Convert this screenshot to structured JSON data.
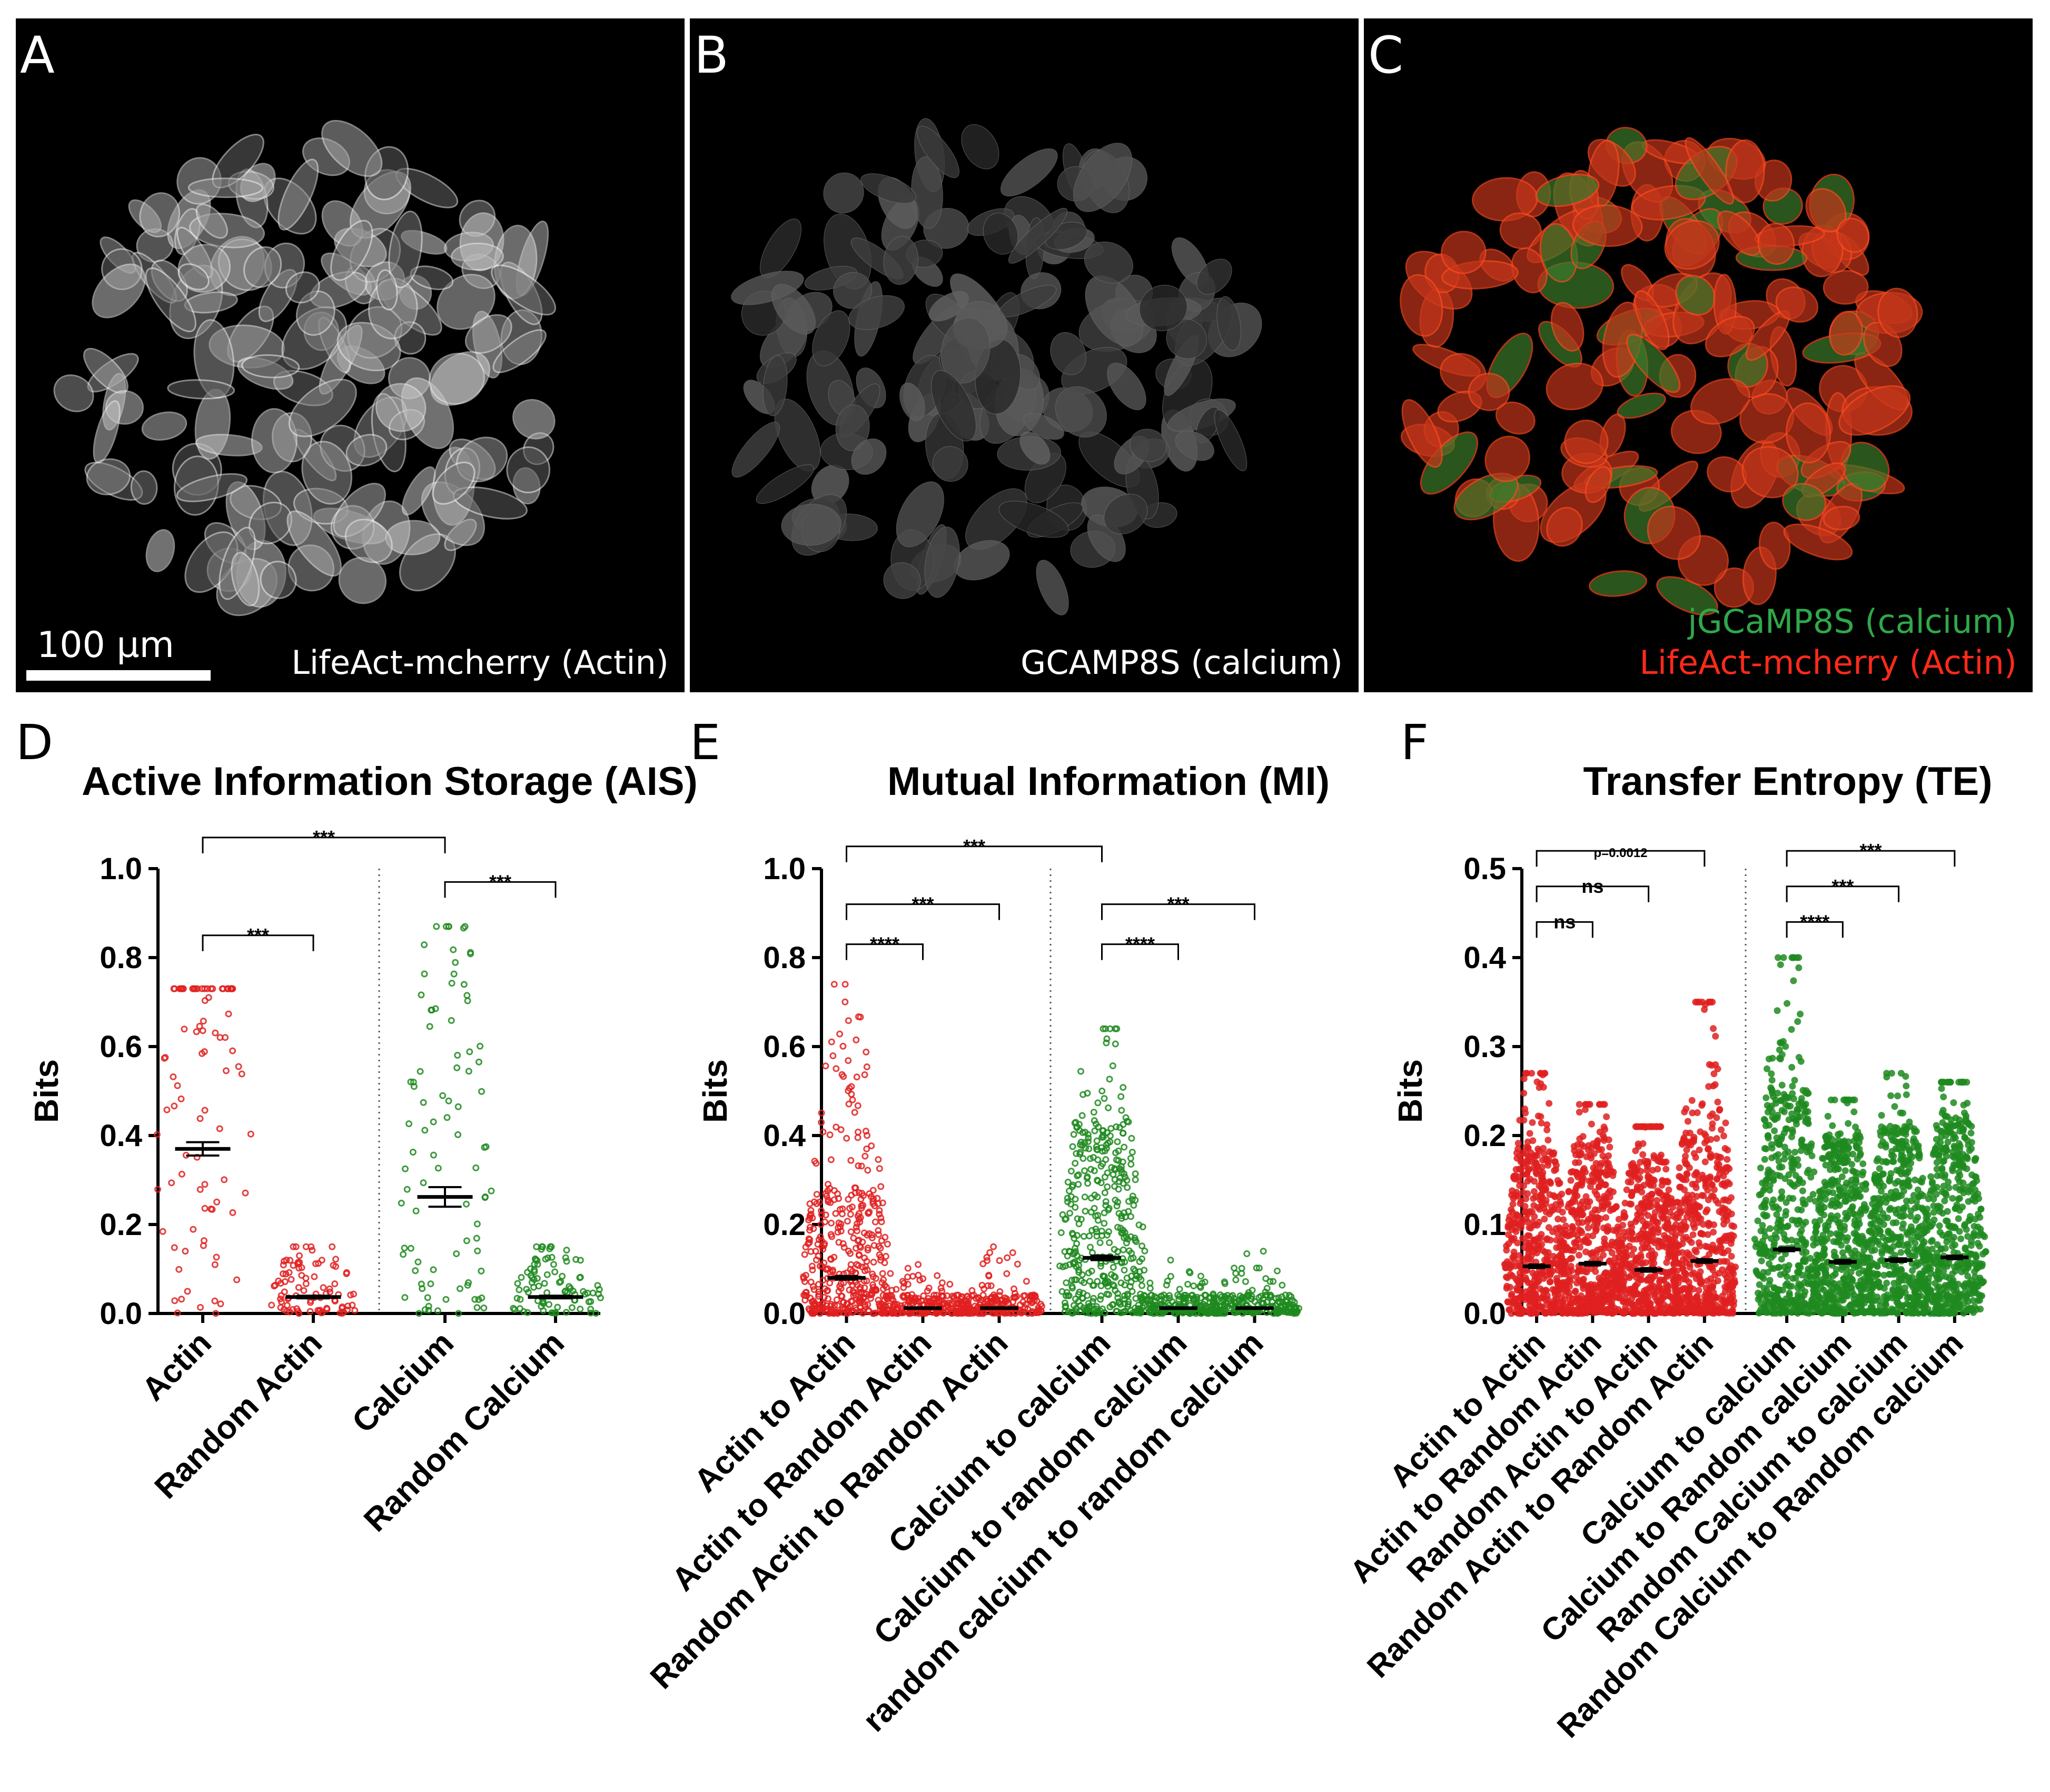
{
  "micrographs": [
    {
      "letter": "A",
      "caption": "LifeAct-mcherry (Actin)",
      "scalebar": "100 µm"
    },
    {
      "letter": "B",
      "caption": "GCAMP8S (calcium)"
    },
    {
      "letter": "C",
      "caption_green": "jGCaMP8S (calcium)",
      "caption_red": "LifeAct-mcherry (Actin)"
    }
  ],
  "colors": {
    "actin": "#e02020",
    "calcium": "#1f8a1f",
    "red_fluor": "#ff3010",
    "green_fluor": "#33cc55"
  },
  "chart_data": [
    {
      "panel": "D",
      "type": "scatter",
      "title": "Active Information Storage  (AIS)",
      "ylabel": "Bits",
      "ylim": [
        0,
        1.0
      ],
      "yticks": [
        "0.0",
        "0.2",
        "0.4",
        "0.6",
        "0.8",
        "1.0"
      ],
      "categories": [
        "Actin",
        "Random Actin",
        "Calcium",
        "Random Calcium"
      ],
      "means": [
        0.37,
        0.037,
        0.262,
        0.037
      ],
      "sems": [
        0.015,
        0.003,
        0.022,
        0.003
      ],
      "maxima": [
        0.73,
        0.15,
        0.87,
        0.15
      ],
      "point_counts": [
        90,
        90,
        90,
        90
      ],
      "series_color": [
        "actin",
        "actin",
        "calcium",
        "calcium"
      ],
      "separator_after": 2,
      "significance": [
        {
          "from": 0,
          "to": 1,
          "label": "***",
          "level": 0.85
        },
        {
          "from": 0,
          "to": 2,
          "label": "***",
          "level": 1.07
        },
        {
          "from": 2,
          "to": 3,
          "label": "***",
          "level": 0.97
        }
      ]
    },
    {
      "panel": "E",
      "type": "scatter",
      "title": "Mutual Information  (MI)",
      "ylabel": "Bits",
      "ylim": [
        0,
        1.0
      ],
      "yticks": [
        "0.0",
        "0.2",
        "0.4",
        "0.6",
        "0.8",
        "1.0"
      ],
      "categories": [
        "Actin to Actin",
        "Actin to Random Actin",
        "Random Actin to Random Actin",
        "Calcium to calcium",
        "Calcium to random calcium",
        "random calcium to random calcium"
      ],
      "means": [
        0.08,
        0.012,
        0.012,
        0.125,
        0.012,
        0.012
      ],
      "sems": [
        0.004,
        0.001,
        0.001,
        0.005,
        0.001,
        0.001
      ],
      "maxima": [
        0.74,
        0.11,
        0.15,
        0.64,
        0.12,
        0.14
      ],
      "point_counts": [
        400,
        200,
        200,
        400,
        200,
        200
      ],
      "series_color": [
        "actin",
        "actin",
        "actin",
        "calcium",
        "calcium",
        "calcium"
      ],
      "separator_after": 3,
      "significance": [
        {
          "from": 0,
          "to": 1,
          "label": "****",
          "level": 0.83
        },
        {
          "from": 0,
          "to": 2,
          "label": "***",
          "level": 0.92
        },
        {
          "from": 0,
          "to": 3,
          "label": "***",
          "level": 1.05
        },
        {
          "from": 3,
          "to": 4,
          "label": "****",
          "level": 0.83
        },
        {
          "from": 3,
          "to": 5,
          "label": "***",
          "level": 0.92
        }
      ]
    },
    {
      "panel": "F",
      "type": "scatter",
      "title": "Transfer Entropy (TE)",
      "ylabel": "Bits",
      "ylim": [
        0,
        0.5
      ],
      "yticks": [
        "0.0",
        "0.1",
        "0.2",
        "0.3",
        "0.4",
        "0.5"
      ],
      "categories": [
        "Actin to Actin",
        "Actin to Random Actin",
        "Random Actin to Actin",
        "Random Actin to Random Actin",
        "Calcium to calcium",
        "Calcium to Random calcium",
        "Random Calcium to calcium",
        "Random Calcium to Random calcium"
      ],
      "means": [
        0.053,
        0.056,
        0.049,
        0.059,
        0.072,
        0.058,
        0.06,
        0.063
      ],
      "sems": [
        0.002,
        0.002,
        0.002,
        0.002,
        0.002,
        0.002,
        0.002,
        0.002
      ],
      "maxima": [
        0.27,
        0.235,
        0.21,
        0.35,
        0.4,
        0.24,
        0.27,
        0.26
      ],
      "point_counts": [
        500,
        500,
        500,
        500,
        500,
        500,
        500,
        500
      ],
      "series_color": [
        "actin",
        "actin",
        "actin",
        "actin",
        "calcium",
        "calcium",
        "calcium",
        "calcium"
      ],
      "separator_after": 4,
      "significance": [
        {
          "from": 0,
          "to": 1,
          "label": "ns",
          "level": 0.44
        },
        {
          "from": 0,
          "to": 2,
          "label": "ns",
          "level": 0.48
        },
        {
          "from": 0,
          "to": 3,
          "label": "p=0.0012",
          "level": 0.52
        },
        {
          "from": 4,
          "to": 5,
          "label": "****",
          "level": 0.44
        },
        {
          "from": 4,
          "to": 6,
          "label": "***",
          "level": 0.48
        },
        {
          "from": 4,
          "to": 7,
          "label": "***",
          "level": 0.52
        }
      ]
    }
  ]
}
